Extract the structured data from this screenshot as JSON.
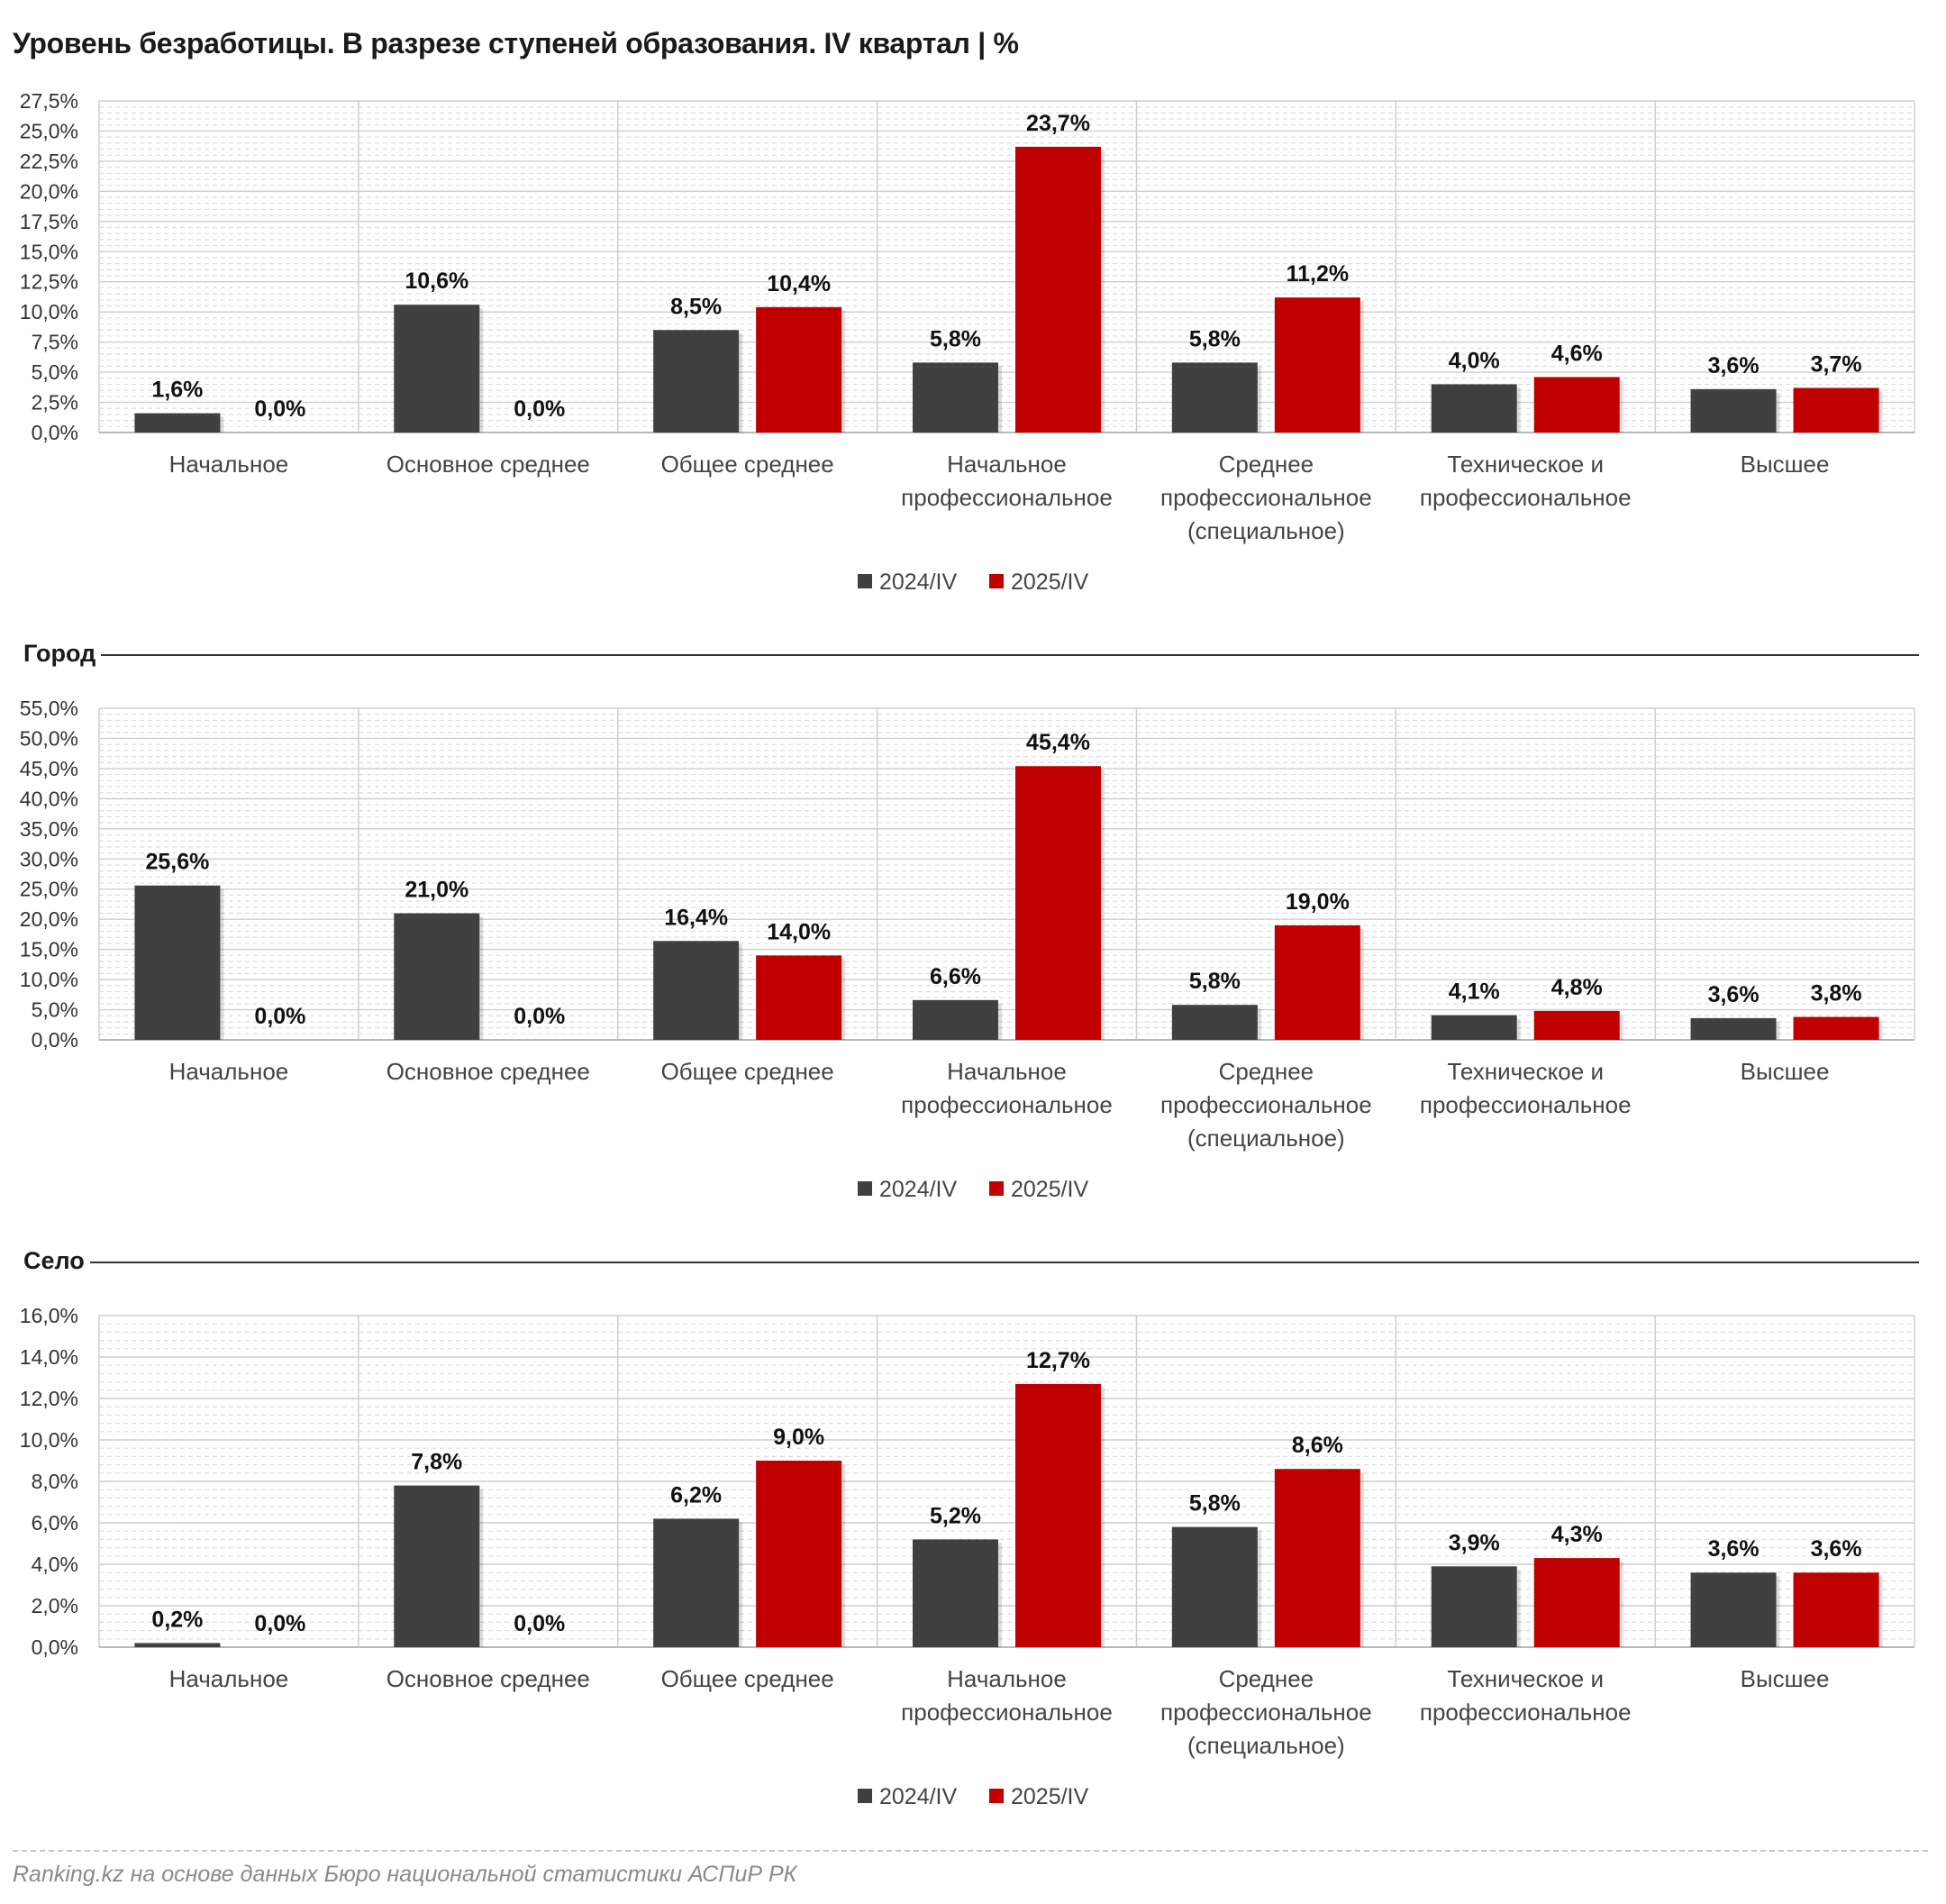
{
  "title": "Уровень безработицы. В разрезе ступеней образования. IV квартал | %",
  "colors": {
    "series_2024": "#404040",
    "series_2025": "#c00000"
  },
  "source": "Ranking.kz на основе данных Бюро национальной статистики АСПиР РК",
  "chart_data": [
    {
      "type": "bar",
      "section_label": "",
      "categories": [
        [
          "Начальное"
        ],
        [
          "Основное среднее"
        ],
        [
          "Общее среднее"
        ],
        [
          "Начальное",
          "профессиональное"
        ],
        [
          "Среднее",
          "профессиональное",
          "(специальное)"
        ],
        [
          "Техническое и",
          "профессиональное"
        ],
        [
          "Высшее"
        ]
      ],
      "series": [
        {
          "name": "2024/IV",
          "values": [
            1.6,
            10.6,
            8.5,
            5.8,
            5.8,
            4.0,
            3.6
          ],
          "labels": [
            "1,6%",
            "10,6%",
            "8,5%",
            "5,8%",
            "5,8%",
            "4,0%",
            "3,6%"
          ]
        },
        {
          "name": "2025/IV",
          "values": [
            0.0,
            0.0,
            10.4,
            23.7,
            11.2,
            4.6,
            3.7
          ],
          "labels": [
            "0,0%",
            "0,0%",
            "10,4%",
            "23,7%",
            "11,2%",
            "4,6%",
            "3,7%"
          ]
        }
      ],
      "ylim": [
        0,
        27.5
      ],
      "ystep": 2.5,
      "ytick_labels": [
        "0,0%",
        "2,5%",
        "5,0%",
        "7,5%",
        "10,0%",
        "12,5%",
        "15,0%",
        "17,5%",
        "20,0%",
        "22,5%",
        "25,0%",
        "27,5%"
      ],
      "grid": true,
      "legend": "bottom-center"
    },
    {
      "type": "bar",
      "section_label": "Город",
      "categories": [
        [
          "Начальное"
        ],
        [
          "Основное среднее"
        ],
        [
          "Общее среднее"
        ],
        [
          "Начальное",
          "профессиональное"
        ],
        [
          "Среднее",
          "профессиональное",
          "(специальное)"
        ],
        [
          "Техническое и",
          "профессиональное"
        ],
        [
          "Высшее"
        ]
      ],
      "series": [
        {
          "name": "2024/IV",
          "values": [
            25.6,
            21.0,
            16.4,
            6.6,
            5.8,
            4.1,
            3.6
          ],
          "labels": [
            "25,6%",
            "21,0%",
            "16,4%",
            "6,6%",
            "5,8%",
            "4,1%",
            "3,6%"
          ]
        },
        {
          "name": "2025/IV",
          "values": [
            0.0,
            0.0,
            14.0,
            45.4,
            19.0,
            4.8,
            3.8
          ],
          "labels": [
            "0,0%",
            "0,0%",
            "14,0%",
            "45,4%",
            "19,0%",
            "4,8%",
            "3,8%"
          ]
        }
      ],
      "ylim": [
        0,
        55
      ],
      "ystep": 5,
      "ytick_labels": [
        "0,0%",
        "5,0%",
        "10,0%",
        "15,0%",
        "20,0%",
        "25,0%",
        "30,0%",
        "35,0%",
        "40,0%",
        "45,0%",
        "50,0%",
        "55,0%"
      ],
      "grid": true,
      "legend": "bottom-center"
    },
    {
      "type": "bar",
      "section_label": "Село",
      "categories": [
        [
          "Начальное"
        ],
        [
          "Основное среднее"
        ],
        [
          "Общее среднее"
        ],
        [
          "Начальное",
          "профессиональное"
        ],
        [
          "Среднее",
          "профессиональное",
          "(специальное)"
        ],
        [
          "Техническое и",
          "профессиональное"
        ],
        [
          "Высшее"
        ]
      ],
      "series": [
        {
          "name": "2024/IV",
          "values": [
            0.2,
            7.8,
            6.2,
            5.2,
            5.8,
            3.9,
            3.6
          ],
          "labels": [
            "0,2%",
            "7,8%",
            "6,2%",
            "5,2%",
            "5,8%",
            "3,9%",
            "3,6%"
          ]
        },
        {
          "name": "2025/IV",
          "values": [
            0.0,
            0.0,
            9.0,
            12.7,
            8.6,
            4.3,
            3.6
          ],
          "labels": [
            "0,0%",
            "0,0%",
            "9,0%",
            "12,7%",
            "8,6%",
            "4,3%",
            "3,6%"
          ]
        }
      ],
      "ylim": [
        0,
        16
      ],
      "ystep": 2,
      "ytick_labels": [
        "0,0%",
        "2,0%",
        "4,0%",
        "6,0%",
        "8,0%",
        "10,0%",
        "12,0%",
        "14,0%",
        "16,0%"
      ],
      "grid": true,
      "legend": "bottom-center"
    }
  ]
}
